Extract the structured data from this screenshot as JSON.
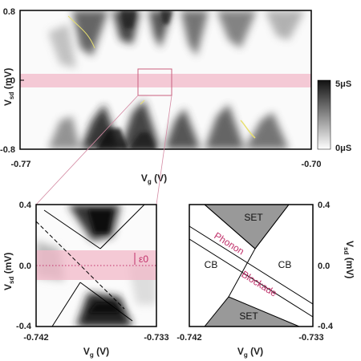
{
  "top_panel": {
    "y_label_main": "V",
    "y_label_sub": "sd",
    "y_label_unit": " (mV)",
    "x_label_main": "V",
    "x_label_sub": "g",
    "x_label_unit": " (V)",
    "y_ticks": [
      "0.8",
      "0",
      "-0.8"
    ],
    "x_ticks": [
      "-0.77",
      "-0.70"
    ],
    "colorbar_labels": [
      "5μS",
      "0μS"
    ]
  },
  "bottom_left": {
    "y_label_main": "V",
    "y_label_sub": "sd",
    "y_label_unit": " (mV)",
    "x_label_main": "V",
    "x_label_sub": "g",
    "x_label_unit": " (V)",
    "y_ticks": [
      "0.4",
      "0.0",
      "-0.4"
    ],
    "x_ticks": [
      "-0.742",
      "-0.733"
    ],
    "epsilon_label": "ε0"
  },
  "bottom_right": {
    "y_label_main": "V",
    "y_label_sub": "sd",
    "y_label_unit": " (mV)",
    "x_label_main": "V",
    "x_label_sub": "g",
    "x_label_unit": " (V)",
    "y_ticks": [
      "0.4",
      "0.0",
      "-0.4"
    ],
    "x_ticks": [
      "-0.742",
      "-0.733"
    ],
    "region_labels": {
      "set_top": "SET",
      "set_bottom": "SET",
      "cb_left": "CB",
      "cb_right": "CB",
      "phonon": "Phonon",
      "blockade": "Blockade"
    }
  },
  "colors": {
    "band": "#f2b8c8",
    "magenta_text": "#c0306a",
    "set_fill": "#999999",
    "trace_yellow": "#e8e070"
  }
}
